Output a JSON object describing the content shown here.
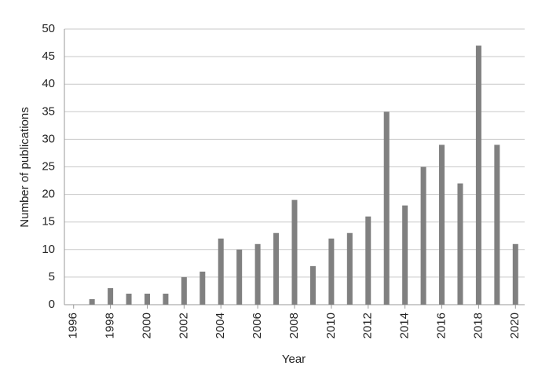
{
  "chart_data": {
    "type": "bar",
    "x_label": "Year",
    "y_label": "Number of publications",
    "x": [
      1997,
      1998,
      1999,
      2000,
      2001,
      2002,
      2003,
      2004,
      2005,
      2006,
      2007,
      2008,
      2009,
      2010,
      2011,
      2012,
      2013,
      2014,
      2015,
      2016,
      2017,
      2018,
      2019,
      2020
    ],
    "values": [
      1,
      3,
      2,
      2,
      2,
      5,
      6,
      12,
      10,
      11,
      13,
      19,
      7,
      12,
      13,
      16,
      35,
      18,
      25,
      29,
      22,
      47,
      29,
      11
    ],
    "color": "#808080",
    "xlim": [
      1995.5,
      2020.5
    ],
    "xticks": [
      1996,
      1998,
      2000,
      2002,
      2004,
      2006,
      2008,
      2010,
      2012,
      2014,
      2016,
      2018,
      2020
    ],
    "ylim": [
      0,
      50
    ],
    "yticks": [
      0,
      5,
      10,
      15,
      20,
      25,
      30,
      35,
      40,
      45,
      50
    ],
    "grid": true
  }
}
